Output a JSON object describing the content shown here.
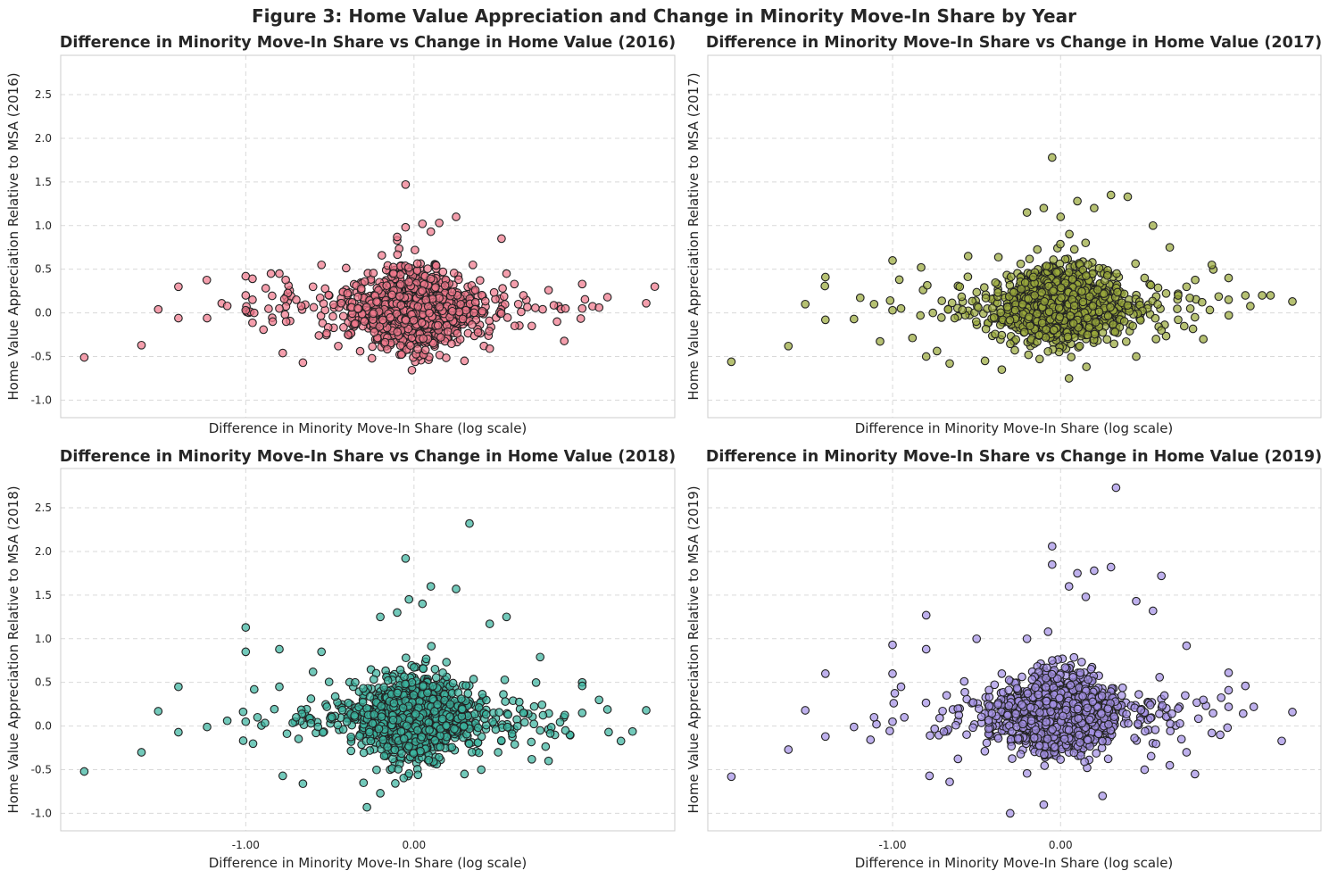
{
  "figure": {
    "title": "Figure 3: Home Value Appreciation and Change in Minority Move-In Share by Year"
  },
  "chart_data": [
    {
      "type": "scatter",
      "title": "Difference in Minority Move-In Share vs Change in Home Value (2016)",
      "xlabel": "Difference in Minority Move-In Share (log scale)",
      "ylabel": "Home Value Appreciation Relative to MSA (2016)",
      "color": "#f0788c",
      "edge_color": "#222222",
      "xlim": [
        -2.1,
        1.55
      ],
      "ylim": [
        -1.2,
        2.95
      ],
      "yticks": [
        "-1.0",
        "-0.5",
        "0.0",
        "0.5",
        "1.0",
        "1.5",
        "2.0",
        "2.5"
      ],
      "xticks": [],
      "grid": true,
      "cluster": {
        "x_center": 0.0,
        "y_center": 0.05,
        "count": 900
      },
      "points": [
        [
          -1.96,
          -0.51
        ],
        [
          -1.62,
          -0.37
        ],
        [
          -1.52,
          0.04
        ],
        [
          -1.4,
          0.3
        ],
        [
          -1.4,
          -0.06
        ],
        [
          -1.23,
          -0.06
        ],
        [
          -1.11,
          0.08
        ],
        [
          -1.0,
          0.42
        ],
        [
          -1.0,
          0.2
        ],
        [
          -1.0,
          0.03
        ],
        [
          -0.96,
          0.39
        ],
        [
          -0.96,
          0.15
        ],
        [
          -0.95,
          0.0
        ],
        [
          -0.84,
          -0.1
        ],
        [
          -0.8,
          0.45
        ],
        [
          -0.8,
          0.05
        ],
        [
          -0.78,
          -0.46
        ],
        [
          -0.76,
          -0.1
        ],
        [
          -0.7,
          0.15
        ],
        [
          -0.66,
          -0.57
        ],
        [
          -0.55,
          0.55
        ],
        [
          -0.45,
          -0.38
        ],
        [
          -0.32,
          -0.44
        ],
        [
          -0.05,
          1.47
        ],
        [
          -0.1,
          0.83
        ],
        [
          -0.1,
          0.87
        ],
        [
          -0.05,
          0.98
        ],
        [
          0.05,
          1.02
        ],
        [
          0.1,
          0.93
        ],
        [
          0.15,
          1.03
        ],
        [
          0.25,
          1.1
        ],
        [
          0.35,
          0.55
        ],
        [
          0.45,
          -0.41
        ],
        [
          0.52,
          0.85
        ],
        [
          0.62,
          0.1
        ],
        [
          0.8,
          0.26
        ],
        [
          0.9,
          0.05
        ],
        [
          1.0,
          0.33
        ],
        [
          1.0,
          0.05
        ],
        [
          1.1,
          0.06
        ],
        [
          1.15,
          0.18
        ],
        [
          1.38,
          0.11
        ],
        [
          0.7,
          -0.15
        ],
        [
          0.55,
          0.45
        ],
        [
          0.3,
          -0.55
        ],
        [
          -0.25,
          -0.52
        ],
        [
          -0.6,
          0.3
        ],
        [
          -0.85,
          0.45
        ],
        [
          0.65,
          0.2
        ],
        [
          0.85,
          -0.1
        ]
      ]
    },
    {
      "type": "scatter",
      "title": "Difference in Minority Move-In Share vs Change in Home Value (2017)",
      "xlabel": "Difference in Minority Move-In Share (log scale)",
      "ylabel": "Home Value Appreciation Relative to MSA (2017)",
      "color": "#9aa93c",
      "edge_color": "#222222",
      "xlim": [
        -2.1,
        1.55
      ],
      "ylim": [
        -1.2,
        2.95
      ],
      "yticks": [],
      "xticks": [],
      "grid": true,
      "cluster": {
        "x_center": 0.0,
        "y_center": 0.1,
        "count": 1000
      },
      "points": [
        [
          -1.96,
          -0.56
        ],
        [
          -1.62,
          -0.38
        ],
        [
          -1.52,
          0.1
        ],
        [
          -1.4,
          0.41
        ],
        [
          -1.4,
          -0.08
        ],
        [
          -1.23,
          -0.07
        ],
        [
          -1.11,
          0.1
        ],
        [
          -1.0,
          0.6
        ],
        [
          -1.0,
          0.03
        ],
        [
          -0.96,
          0.38
        ],
        [
          -0.95,
          0.05
        ],
        [
          -0.83,
          0.52
        ],
        [
          -0.8,
          -0.5
        ],
        [
          -0.76,
          0.0
        ],
        [
          -0.66,
          -0.58
        ],
        [
          -0.55,
          0.65
        ],
        [
          -0.45,
          -0.55
        ],
        [
          -0.2,
          1.15
        ],
        [
          -0.1,
          1.2
        ],
        [
          -0.05,
          1.78
        ],
        [
          0.0,
          1.1
        ],
        [
          0.1,
          1.28
        ],
        [
          0.2,
          1.2
        ],
        [
          0.3,
          1.35
        ],
        [
          0.4,
          1.33
        ],
        [
          0.55,
          1.0
        ],
        [
          0.65,
          0.75
        ],
        [
          0.45,
          -0.5
        ],
        [
          0.75,
          0.3
        ],
        [
          0.9,
          0.55
        ],
        [
          1.0,
          0.4
        ],
        [
          1.0,
          0.15
        ],
        [
          1.1,
          0.2
        ],
        [
          1.2,
          0.2
        ],
        [
          1.25,
          0.2
        ],
        [
          1.38,
          0.13
        ],
        [
          0.8,
          -0.05
        ],
        [
          0.7,
          0.2
        ],
        [
          0.6,
          -0.2
        ],
        [
          -0.35,
          -0.65
        ],
        [
          0.05,
          -0.75
        ],
        [
          0.85,
          -0.3
        ],
        [
          -0.6,
          0.3
        ],
        [
          0.5,
          0.4
        ]
      ]
    },
    {
      "type": "scatter",
      "title": "Difference in Minority Move-In Share vs Change in Home Value (2018)",
      "xlabel": "Difference in Minority Move-In Share (log scale)",
      "ylabel": "Home Value Appreciation Relative to MSA (2018)",
      "color": "#3cb4a0",
      "edge_color": "#222222",
      "xlim": [
        -2.1,
        1.55
      ],
      "ylim": [
        -1.2,
        2.95
      ],
      "yticks": [
        "-1.0",
        "-0.5",
        "0.0",
        "0.5",
        "1.0",
        "1.5",
        "2.0",
        "2.5"
      ],
      "xticks": [
        "-1.00",
        "0.00"
      ],
      "grid": true,
      "cluster": {
        "x_center": 0.0,
        "y_center": 0.1,
        "count": 1000
      },
      "points": [
        [
          -1.96,
          -0.52
        ],
        [
          -1.62,
          -0.3
        ],
        [
          -1.52,
          0.17
        ],
        [
          -1.4,
          0.45
        ],
        [
          -1.4,
          -0.07
        ],
        [
          -1.23,
          -0.01
        ],
        [
          -1.11,
          0.06
        ],
        [
          -1.0,
          1.13
        ],
        [
          -1.0,
          0.85
        ],
        [
          -1.0,
          0.05
        ],
        [
          -0.95,
          0.42
        ],
        [
          -0.93,
          0.1
        ],
        [
          -0.8,
          0.88
        ],
        [
          -0.8,
          0.45
        ],
        [
          -0.78,
          -0.57
        ],
        [
          -0.7,
          0.1
        ],
        [
          -0.66,
          -0.66
        ],
        [
          -0.6,
          0.62
        ],
        [
          -0.55,
          0.85
        ],
        [
          -0.3,
          -0.65
        ],
        [
          -0.28,
          -0.93
        ],
        [
          -0.2,
          -0.77
        ],
        [
          -0.2,
          1.25
        ],
        [
          -0.1,
          1.3
        ],
        [
          -0.05,
          1.92
        ],
        [
          -0.03,
          1.45
        ],
        [
          0.05,
          1.4
        ],
        [
          0.1,
          1.6
        ],
        [
          0.25,
          1.57
        ],
        [
          0.33,
          2.32
        ],
        [
          0.45,
          1.17
        ],
        [
          0.55,
          1.25
        ],
        [
          0.4,
          -0.5
        ],
        [
          0.5,
          -0.3
        ],
        [
          0.75,
          0.79
        ],
        [
          0.75,
          -0.05
        ],
        [
          0.8,
          -0.4
        ],
        [
          1.0,
          0.5
        ],
        [
          1.0,
          0.46
        ],
        [
          1.0,
          0.15
        ],
        [
          1.1,
          0.3
        ],
        [
          1.15,
          0.19
        ],
        [
          1.38,
          0.18
        ],
        [
          0.9,
          -0.05
        ],
        [
          0.65,
          0.15
        ],
        [
          0.7,
          -0.38
        ],
        [
          -0.35,
          0.5
        ],
        [
          0.3,
          -0.55
        ]
      ]
    },
    {
      "type": "scatter",
      "title": "Difference in Minority Move-In Share vs Change in Home Value (2019)",
      "xlabel": "Difference in Minority Move-In Share (log scale)",
      "ylabel": "Home Value Appreciation Relative to MSA (2019)",
      "color": "#a592e6",
      "edge_color": "#222222",
      "xlim": [
        -2.1,
        1.55
      ],
      "ylim": [
        -1.2,
        2.95
      ],
      "yticks": [],
      "xticks": [
        "-1.00",
        "0.00"
      ],
      "grid": true,
      "cluster": {
        "x_center": 0.0,
        "y_center": 0.15,
        "count": 1100
      },
      "points": [
        [
          -1.96,
          -0.58
        ],
        [
          -1.62,
          -0.27
        ],
        [
          -1.52,
          0.18
        ],
        [
          -1.4,
          0.6
        ],
        [
          -1.4,
          -0.12
        ],
        [
          -1.23,
          -0.01
        ],
        [
          -1.11,
          0.1
        ],
        [
          -1.0,
          0.93
        ],
        [
          -1.0,
          0.6
        ],
        [
          -1.0,
          0.05
        ],
        [
          -0.95,
          0.45
        ],
        [
          -0.93,
          0.1
        ],
        [
          -0.8,
          1.27
        ],
        [
          -0.8,
          0.88
        ],
        [
          -0.78,
          -0.57
        ],
        [
          -0.66,
          -0.64
        ],
        [
          -0.5,
          1.0
        ],
        [
          -0.3,
          -1.0
        ],
        [
          -0.2,
          1.0
        ],
        [
          -0.05,
          2.06
        ],
        [
          -0.05,
          1.85
        ],
        [
          0.05,
          1.6
        ],
        [
          0.1,
          1.75
        ],
        [
          0.15,
          1.48
        ],
        [
          0.2,
          1.78
        ],
        [
          0.3,
          1.82
        ],
        [
          0.33,
          2.73
        ],
        [
          0.45,
          1.43
        ],
        [
          0.55,
          1.32
        ],
        [
          0.6,
          1.72
        ],
        [
          0.65,
          -0.45
        ],
        [
          0.75,
          0.92
        ],
        [
          0.75,
          -0.3
        ],
        [
          0.8,
          -0.55
        ],
        [
          0.85,
          0.3
        ],
        [
          1.0,
          0.61
        ],
        [
          1.0,
          0.41
        ],
        [
          1.0,
          0.22
        ],
        [
          1.1,
          0.46
        ],
        [
          1.15,
          0.22
        ],
        [
          1.38,
          0.16
        ],
        [
          0.9,
          -0.08
        ],
        [
          0.7,
          0.2
        ],
        [
          0.5,
          -0.5
        ],
        [
          -0.35,
          0.6
        ],
        [
          0.25,
          -0.8
        ],
        [
          -0.1,
          -0.9
        ],
        [
          0.95,
          -0.1
        ]
      ]
    }
  ]
}
